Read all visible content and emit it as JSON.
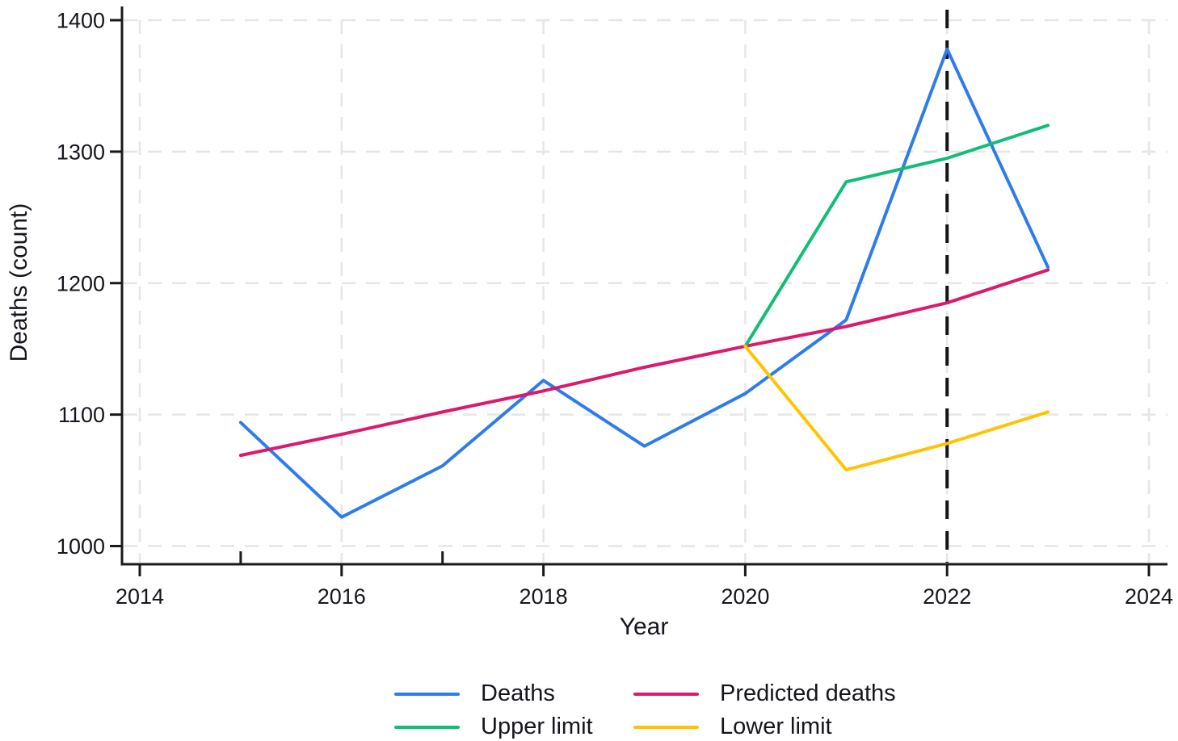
{
  "chart_data": {
    "type": "line",
    "title": "",
    "xlabel": "Year",
    "ylabel": "Deaths (count)",
    "xlim": [
      2014,
      2024
    ],
    "ylim": [
      1000,
      1400
    ],
    "x_ticks_labeled": [
      2014,
      2016,
      2018,
      2020,
      2022,
      2024
    ],
    "x_inner_ticks": [
      2015,
      2017
    ],
    "y_ticks": [
      1000,
      1100,
      1200,
      1300,
      1400
    ],
    "grid": true,
    "gridline_color": "#e6e6e6",
    "axis_color": "#1a1a1a",
    "text_color": "#15151d",
    "reference_line": {
      "x": 2022,
      "color": "#141414",
      "style": "dashed"
    },
    "legend_position": "bottom",
    "series": [
      {
        "name": "Deaths",
        "color": "#2E7CEB",
        "x": [
          2015,
          2016,
          2017,
          2018,
          2019,
          2020,
          2021,
          2022,
          2023
        ],
        "values": [
          1094,
          1022,
          1061,
          1126,
          1076,
          1116,
          1172,
          1378,
          1212
        ]
      },
      {
        "name": "Predicted deaths",
        "color": "#DC1A6B",
        "x": [
          2015,
          2016,
          2017,
          2018,
          2019,
          2020,
          2021,
          2022,
          2023
        ],
        "values": [
          1069,
          1085,
          1102,
          1118,
          1136,
          1152,
          1167,
          1185,
          1210
        ]
      },
      {
        "name": "Upper limit",
        "color": "#10BE77",
        "x": [
          2020,
          2021,
          2022,
          2023
        ],
        "values": [
          1152,
          1277,
          1295,
          1320
        ]
      },
      {
        "name": "Lower limit",
        "color": "#FFC400",
        "x": [
          2020,
          2021,
          2022,
          2023
        ],
        "values": [
          1152,
          1058,
          1078,
          1102
        ]
      }
    ]
  }
}
